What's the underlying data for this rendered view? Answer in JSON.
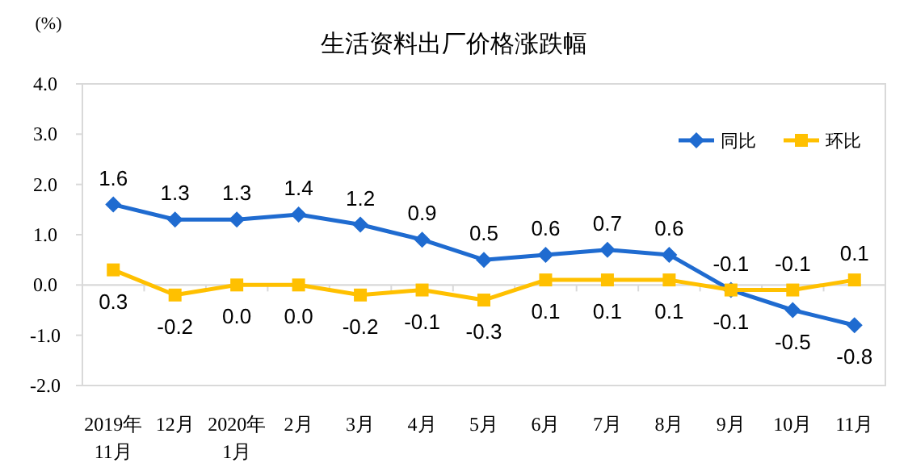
{
  "chart_data": {
    "type": "line",
    "title": "生活资料出厂价格涨跌幅",
    "ylabel": "(%)",
    "categories": [
      "2019年\n11月",
      "12月",
      "2020年\n1月",
      "2月",
      "3月",
      "4月",
      "5月",
      "6月",
      "7月",
      "8月",
      "9月",
      "10月",
      "11月"
    ],
    "series": [
      {
        "name": "同比",
        "color": "#1f6bd0",
        "marker": "diamond",
        "values": [
          1.6,
          1.3,
          1.3,
          1.4,
          1.2,
          0.9,
          0.5,
          0.6,
          0.7,
          0.6,
          -0.1,
          -0.5,
          -0.8
        ],
        "value_labels": [
          "1.6",
          "1.3",
          "1.3",
          "1.4",
          "1.2",
          "0.9",
          "0.5",
          "0.6",
          "0.7",
          "0.6",
          "-0.1",
          "-0.5",
          "-0.8"
        ]
      },
      {
        "name": "环比",
        "color": "#ffc000",
        "marker": "square",
        "values": [
          0.3,
          -0.2,
          0.0,
          0.0,
          -0.2,
          -0.1,
          -0.3,
          0.1,
          0.1,
          0.1,
          -0.1,
          -0.1,
          0.1
        ],
        "value_labels": [
          "0.3",
          "-0.2",
          "0.0",
          "0.0",
          "-0.2",
          "-0.1",
          "-0.3",
          "0.1",
          "0.1",
          "0.1",
          "-0.1",
          "-0.1",
          "0.1"
        ]
      }
    ],
    "ylim": [
      -2,
      4
    ],
    "yticks": [
      {
        "value": -2,
        "label": "-2.0"
      },
      {
        "value": -1,
        "label": "-1.0"
      },
      {
        "value": 0,
        "label": "0.0"
      },
      {
        "value": 1,
        "label": "1.0"
      },
      {
        "value": 2,
        "label": "2.0"
      },
      {
        "value": 3,
        "label": "3.0"
      },
      {
        "value": 4,
        "label": "4.0"
      }
    ],
    "legend": "top right",
    "line_style": "solid"
  }
}
